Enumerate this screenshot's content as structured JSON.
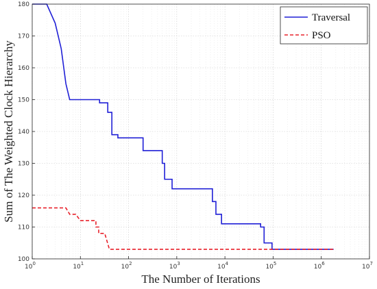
{
  "chart_data": {
    "type": "line",
    "title": "",
    "xlabel": "The Number of Iterations",
    "ylabel": "Sum of The Weighted Clock Hierarchy",
    "x_scale": "log",
    "xlim": [
      1,
      10000000
    ],
    "ylim": [
      100,
      180
    ],
    "x_ticks": [
      1,
      10,
      100,
      1000,
      10000,
      100000,
      1000000,
      10000000
    ],
    "x_tick_labels": [
      {
        "base": "10",
        "exp": "0"
      },
      {
        "base": "10",
        "exp": "1"
      },
      {
        "base": "10",
        "exp": "2"
      },
      {
        "base": "10",
        "exp": "3"
      },
      {
        "base": "10",
        "exp": "4"
      },
      {
        "base": "10",
        "exp": "5"
      },
      {
        "base": "10",
        "exp": "6"
      },
      {
        "base": "10",
        "exp": "7"
      }
    ],
    "y_ticks": [
      "100",
      "110",
      "120",
      "130",
      "140",
      "150",
      "160",
      "170",
      "180"
    ],
    "grid": true,
    "legend_position": "top-right",
    "series": [
      {
        "name": "Traversal",
        "color": "#1f1fd6",
        "style": "solid",
        "points": [
          [
            1,
            180
          ],
          [
            2,
            180
          ],
          [
            3,
            174
          ],
          [
            4,
            166
          ],
          [
            5,
            155
          ],
          [
            6,
            150
          ],
          [
            25,
            150
          ],
          [
            25,
            149
          ],
          [
            37,
            149
          ],
          [
            37,
            146
          ],
          [
            45,
            146
          ],
          [
            45,
            139
          ],
          [
            60,
            139
          ],
          [
            60,
            138
          ],
          [
            200,
            138
          ],
          [
            200,
            134
          ],
          [
            500,
            134
          ],
          [
            500,
            130
          ],
          [
            560,
            130
          ],
          [
            560,
            125
          ],
          [
            800,
            125
          ],
          [
            800,
            122
          ],
          [
            5500,
            122
          ],
          [
            5500,
            118
          ],
          [
            6500,
            118
          ],
          [
            6500,
            114
          ],
          [
            8500,
            114
          ],
          [
            8500,
            111
          ],
          [
            55000,
            111
          ],
          [
            55000,
            110
          ],
          [
            65000,
            110
          ],
          [
            65000,
            105
          ],
          [
            95000,
            105
          ],
          [
            95000,
            103
          ],
          [
            1800000,
            103
          ]
        ]
      },
      {
        "name": "PSO",
        "color": "#e8202a",
        "style": "dashed",
        "points": [
          [
            1,
            116
          ],
          [
            5,
            116
          ],
          [
            6,
            114
          ],
          [
            8,
            114
          ],
          [
            10,
            112
          ],
          [
            21,
            112
          ],
          [
            21,
            110
          ],
          [
            24,
            110
          ],
          [
            24,
            108
          ],
          [
            32,
            108
          ],
          [
            40,
            103
          ],
          [
            1800000,
            103
          ]
        ]
      }
    ]
  }
}
